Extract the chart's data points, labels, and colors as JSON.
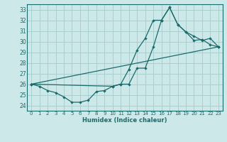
{
  "xlabel": "Humidex (Indice chaleur)",
  "bg_color": "#cce8e8",
  "grid_color": "#aacfcf",
  "line_color": "#1a6b6b",
  "xlim": [
    -0.5,
    23.5
  ],
  "ylim": [
    23.5,
    33.5
  ],
  "yticks": [
    24,
    25,
    26,
    27,
    28,
    29,
    30,
    31,
    32,
    33
  ],
  "xticks": [
    0,
    1,
    2,
    3,
    4,
    5,
    6,
    7,
    8,
    9,
    10,
    11,
    12,
    13,
    14,
    15,
    16,
    17,
    18,
    19,
    20,
    21,
    22,
    23
  ],
  "line1_x": [
    0,
    1,
    2,
    3,
    4,
    5,
    6,
    7,
    8,
    9,
    10,
    11,
    12,
    13,
    14,
    15,
    16,
    17,
    18,
    19,
    20,
    21,
    22,
    23
  ],
  "line1_y": [
    26.0,
    25.8,
    25.4,
    25.2,
    24.8,
    24.3,
    24.3,
    24.5,
    25.3,
    25.4,
    25.8,
    26.0,
    27.4,
    29.2,
    30.3,
    32.0,
    32.0,
    33.2,
    31.6,
    30.9,
    30.1,
    30.2,
    29.7,
    29.5
  ],
  "line2_x": [
    0,
    10,
    11,
    12,
    13,
    14,
    15,
    16,
    17,
    18,
    19,
    20,
    21,
    22,
    23
  ],
  "line2_y": [
    26.0,
    25.8,
    26.0,
    26.0,
    27.5,
    27.5,
    29.5,
    32.0,
    33.2,
    31.6,
    30.9,
    30.5,
    30.1,
    30.3,
    29.5
  ],
  "line3_x": [
    0,
    23
  ],
  "line3_y": [
    26.0,
    29.5
  ]
}
